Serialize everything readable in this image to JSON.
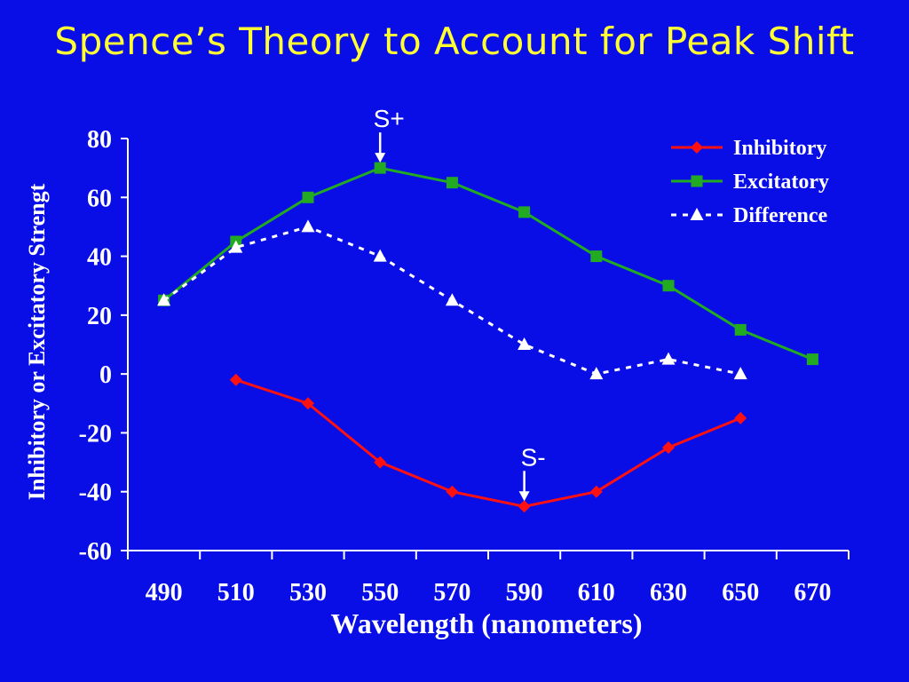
{
  "slide": {
    "title": "Spence’s Theory to Account for  Peak Shift"
  },
  "annotations": {
    "s_plus": {
      "label": "S+",
      "x": 550
    },
    "s_minus": {
      "label": "S-",
      "x": 590
    }
  },
  "chart_data": {
    "type": "line",
    "xlabel": "Wavelength (nanometers)",
    "ylabel": "Inhibitory or Excitatory Strengt",
    "ylim": [
      -60,
      80
    ],
    "yticks": [
      "80",
      "60",
      "40",
      "20",
      "0",
      "-20",
      "-40",
      "-60"
    ],
    "xticks": [
      "490",
      "510",
      "530",
      "550",
      "570",
      "590",
      "610",
      "630",
      "650",
      "670"
    ],
    "legend_position": "top-right",
    "grid": false,
    "series": [
      {
        "name": "Inhibitory",
        "color": "#ff1111",
        "marker": "diamond",
        "style": "solid",
        "x": [
          510,
          530,
          550,
          570,
          590,
          610,
          630,
          650
        ],
        "values": [
          -2,
          -10,
          -30,
          -40,
          -45,
          -40,
          -25,
          -15
        ]
      },
      {
        "name": "Excitatory",
        "color": "#22aa22",
        "marker": "square",
        "style": "solid",
        "x": [
          490,
          510,
          530,
          550,
          570,
          590,
          610,
          630,
          650,
          670
        ],
        "values": [
          25,
          45,
          60,
          70,
          65,
          55,
          40,
          30,
          15,
          5
        ]
      },
      {
        "name": "Difference",
        "color": "#ffffff",
        "marker": "triangle",
        "style": "dashed",
        "x": [
          490,
          510,
          530,
          550,
          570,
          590,
          610,
          630,
          650
        ],
        "values": [
          25,
          43,
          50,
          40,
          25,
          10,
          0,
          5,
          0
        ]
      }
    ]
  }
}
